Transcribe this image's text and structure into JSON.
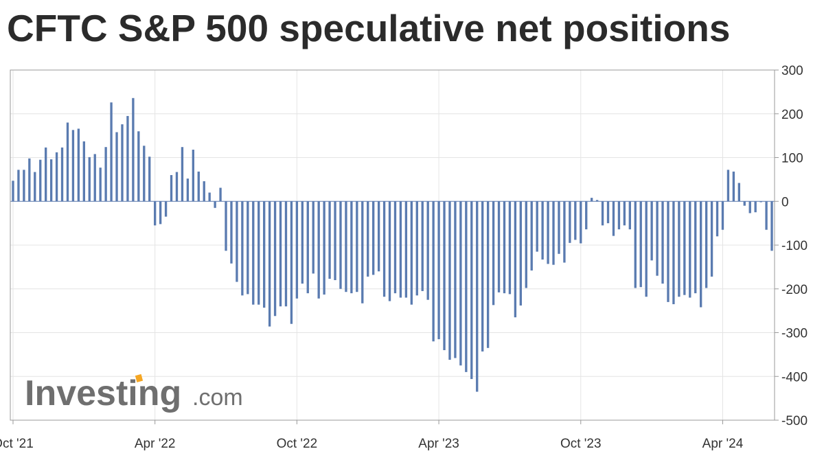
{
  "title": "CFTC S&P 500 speculative net positions",
  "logo": {
    "text": "Investing",
    "domain": ".com",
    "accent_color": "#f5a623",
    "text_color": "#6f6f6f"
  },
  "colors": {
    "bar": "#5a7bb0",
    "grid": "#e4e4e4",
    "axis": "#999999",
    "text": "#333333"
  },
  "chart_data": {
    "type": "bar",
    "title": "CFTC S&P 500 speculative net positions",
    "xlabel": "",
    "ylabel": "",
    "ylim": [
      -500,
      300
    ],
    "yticks": [
      300,
      200,
      100,
      0,
      -100,
      -200,
      -300,
      -400,
      -500
    ],
    "y_axis_position": "right",
    "grid": true,
    "x_tick_labels": [
      "Oct '21",
      "Apr '22",
      "Oct '22",
      "Apr '23",
      "Oct '23",
      "Apr '24"
    ],
    "x_tick_positions": [
      0.5,
      26.5,
      52.5,
      78.5,
      104.5,
      130.5
    ],
    "x_count": 140,
    "values": [
      47,
      72,
      72,
      98,
      67,
      95,
      123,
      96,
      112,
      123,
      180,
      163,
      166,
      137,
      101,
      108,
      77,
      124,
      226,
      158,
      176,
      195,
      236,
      160,
      127,
      102,
      -55,
      -52,
      -35,
      60,
      67,
      124,
      52,
      118,
      68,
      46,
      20,
      -15,
      31,
      -113,
      -142,
      -184,
      -215,
      -212,
      -236,
      -236,
      -243,
      -286,
      -262,
      -240,
      -240,
      -280,
      -222,
      -188,
      -210,
      -165,
      -222,
      -213,
      -177,
      -180,
      -200,
      -207,
      -210,
      -207,
      -233,
      -172,
      -168,
      -160,
      -218,
      -228,
      -210,
      -220,
      -220,
      -236,
      -215,
      -205,
      -225,
      -320,
      -315,
      -340,
      -362,
      -358,
      -375,
      -390,
      -406,
      -435,
      -343,
      -335,
      -237,
      -208,
      -210,
      -212,
      -265,
      -238,
      -198,
      -158,
      -115,
      -133,
      -143,
      -145,
      -120,
      -140,
      -95,
      -88,
      -96,
      -64,
      8,
      3,
      -55,
      -50,
      -79,
      -64,
      -55,
      -64,
      -198,
      -196,
      -218,
      -135,
      -170,
      -188,
      -230,
      -235,
      -218,
      -214,
      -220,
      -210,
      -242,
      -198,
      -172,
      -80,
      -65,
      72,
      68,
      42,
      -10,
      -27,
      -25,
      -2,
      -65,
      -113
    ]
  }
}
